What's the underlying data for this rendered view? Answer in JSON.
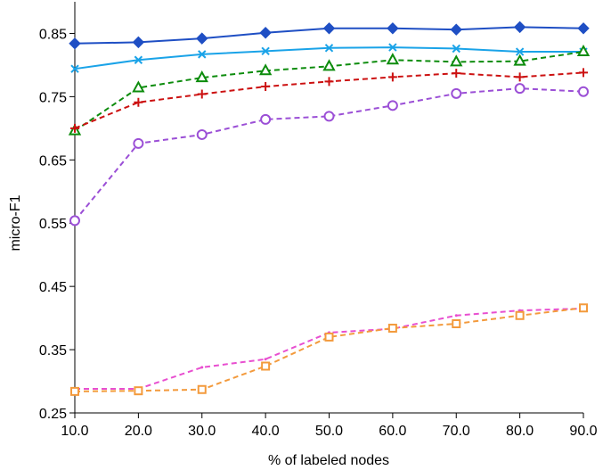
{
  "chart_data": {
    "type": "line",
    "xlabel": "% of labeled nodes",
    "ylabel": "micro-F1",
    "xlim": [
      10,
      90
    ],
    "ylim": [
      0.25,
      0.9
    ],
    "x": [
      10,
      20,
      30,
      40,
      50,
      60,
      70,
      80,
      90
    ],
    "x_tick_labels": [
      "10.0",
      "20.0",
      "30.0",
      "40.0",
      "50.0",
      "60.0",
      "70.0",
      "80.0",
      "90.0"
    ],
    "y_ticks": [
      0.25,
      0.35,
      0.45,
      0.55,
      0.65,
      0.75,
      0.85
    ],
    "y_tick_labels": [
      "0.25",
      "0.35",
      "0.45",
      "0.55",
      "0.65",
      "0.75",
      "0.85"
    ],
    "grid": false,
    "legend": "none",
    "series": [
      {
        "values": [
          0.834,
          0.836,
          0.842,
          0.851,
          0.858,
          0.858,
          0.856,
          0.86,
          0.858
        ],
        "color": "#1f4fc4",
        "marker": "diamond",
        "dash": "solid"
      },
      {
        "values": [
          0.794,
          0.808,
          0.817,
          0.822,
          0.827,
          0.828,
          0.826,
          0.821,
          0.821
        ],
        "color": "#1aa3e8",
        "marker": "x",
        "dash": "solid"
      },
      {
        "values": [
          0.696,
          0.764,
          0.78,
          0.791,
          0.798,
          0.808,
          0.805,
          0.806,
          0.821
        ],
        "color": "#0d8c0d",
        "marker": "triangle",
        "dash": "dashed"
      },
      {
        "values": [
          0.7,
          0.741,
          0.754,
          0.766,
          0.774,
          0.781,
          0.787,
          0.781,
          0.788
        ],
        "color": "#cc1111",
        "marker": "plus",
        "dash": "dashed"
      },
      {
        "values": [
          0.554,
          0.676,
          0.69,
          0.714,
          0.719,
          0.736,
          0.755,
          0.763,
          0.758
        ],
        "color": "#9b4fd6",
        "marker": "circle",
        "dash": "dashed"
      },
      {
        "values": [
          0.288,
          0.288,
          0.322,
          0.335,
          0.377,
          0.383,
          0.404,
          0.412,
          0.415
        ],
        "color": "#e84fd0",
        "marker": "none",
        "dash": "dashed"
      },
      {
        "values": [
          0.284,
          0.285,
          0.287,
          0.324,
          0.37,
          0.384,
          0.391,
          0.404,
          0.416
        ],
        "color": "#f39a3c",
        "marker": "square",
        "dash": "dashed"
      }
    ]
  }
}
